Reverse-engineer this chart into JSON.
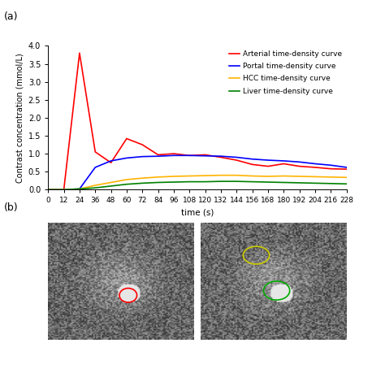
{
  "time_points": [
    0,
    12,
    24,
    36,
    48,
    60,
    72,
    84,
    96,
    108,
    120,
    132,
    144,
    156,
    168,
    180,
    192,
    204,
    216,
    228
  ],
  "arterial": [
    0.0,
    0.0,
    3.8,
    1.05,
    0.75,
    1.42,
    1.25,
    0.97,
    1.0,
    0.95,
    0.97,
    0.9,
    0.82,
    0.7,
    0.65,
    0.72,
    0.65,
    0.62,
    0.58,
    0.57
  ],
  "portal": [
    0.0,
    0.0,
    0.02,
    0.62,
    0.8,
    0.88,
    0.92,
    0.93,
    0.95,
    0.95,
    0.94,
    0.93,
    0.9,
    0.85,
    0.82,
    0.8,
    0.77,
    0.72,
    0.68,
    0.62
  ],
  "hcc": [
    0.0,
    0.0,
    0.02,
    0.12,
    0.2,
    0.28,
    0.32,
    0.35,
    0.37,
    0.38,
    0.39,
    0.4,
    0.4,
    0.38,
    0.37,
    0.38,
    0.37,
    0.36,
    0.35,
    0.34
  ],
  "liver": [
    0.0,
    0.0,
    0.02,
    0.05,
    0.1,
    0.15,
    0.18,
    0.2,
    0.21,
    0.22,
    0.22,
    0.23,
    0.23,
    0.22,
    0.21,
    0.2,
    0.19,
    0.18,
    0.17,
    0.16
  ],
  "arterial_color": "#FF0000",
  "portal_color": "#0000FF",
  "hcc_color": "#FFB300",
  "liver_color": "#008000",
  "ylabel": "Contrast concentration (mmol/L)",
  "xlabel": "time (s)",
  "yticks": [
    0.0,
    0.5,
    1.0,
    1.5,
    2.0,
    2.5,
    3.0,
    3.5,
    4.0
  ],
  "xtick_labels": [
    "0",
    "12",
    "24",
    "36",
    "48",
    "60",
    "72",
    "84",
    "96",
    "108",
    "120",
    "132",
    "144",
    "156",
    "168",
    "180",
    "192",
    "204",
    "216",
    "228"
  ],
  "legend_arterial": "Arterial time-density curve",
  "legend_portal": "Portal time-density curve",
  "legend_hcc": "HCC time-density curve",
  "legend_liver": "Liver time-density curve",
  "panel_a_label": "(a)",
  "panel_b_label": "(b)"
}
